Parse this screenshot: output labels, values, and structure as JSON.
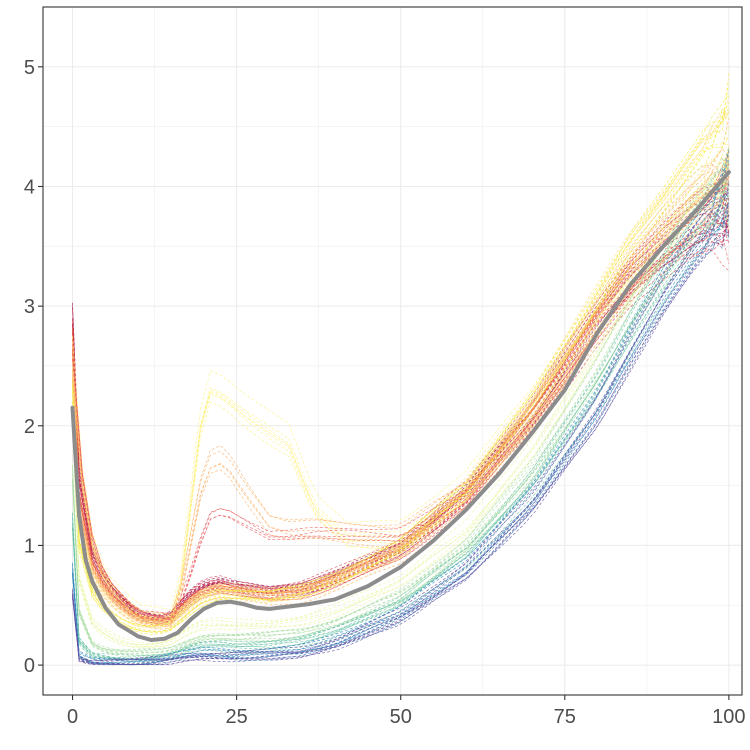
{
  "chart_data": {
    "type": "line",
    "title": "",
    "xlabel": "",
    "ylabel": "",
    "xlim": [
      -4.5,
      102
    ],
    "ylim": [
      -0.25,
      5.5
    ],
    "x_ticks": [
      0,
      25,
      50,
      75,
      100
    ],
    "x_tick_labels": [
      "0",
      "25",
      "50",
      "75",
      "100"
    ],
    "y_ticks": [
      0,
      1,
      2,
      3,
      4,
      5
    ],
    "y_tick_labels": [
      "0",
      "1",
      "2",
      "3",
      "4",
      "5"
    ],
    "x_minor_ticks": [
      12.5,
      37.5,
      62.5,
      87.5
    ],
    "y_minor_ticks": [
      0.5,
      1.5,
      2.5,
      3.5,
      4.5
    ],
    "grid": true,
    "legend": "none",
    "palette": [
      "#9e0142",
      "#d53e4f",
      "#f46d43",
      "#fdae61",
      "#fee08b",
      "#ffffbf",
      "#e6f598",
      "#abdda4",
      "#66c2a5",
      "#3288bd",
      "#5e4fa2"
    ],
    "bundles": [
      {
        "name": "dark-red",
        "color": "#9e0142",
        "count": 9,
        "spread": 0.06,
        "x": [
          0,
          1,
          3,
          5,
          8,
          10,
          13,
          15,
          17,
          19,
          22,
          25,
          30,
          35,
          40,
          50,
          60,
          70,
          80,
          85,
          90,
          95,
          100
        ],
        "y": [
          2.9,
          1.6,
          0.95,
          0.72,
          0.52,
          0.43,
          0.38,
          0.42,
          0.55,
          0.64,
          0.7,
          0.66,
          0.62,
          0.65,
          0.75,
          0.98,
          1.45,
          2.1,
          2.9,
          3.25,
          3.5,
          3.7,
          3.8
        ]
      },
      {
        "name": "red",
        "color": "#d53e4f",
        "count": 9,
        "spread": 0.06,
        "x": [
          0,
          1,
          3,
          5,
          8,
          10,
          13,
          15,
          17,
          19,
          22,
          25,
          30,
          35,
          40,
          50,
          60,
          70,
          80,
          85,
          90,
          95,
          100
        ],
        "y": [
          2.8,
          1.5,
          0.9,
          0.68,
          0.5,
          0.42,
          0.37,
          0.4,
          0.52,
          0.62,
          0.68,
          0.64,
          0.6,
          0.63,
          0.73,
          0.97,
          1.42,
          2.08,
          2.85,
          3.2,
          3.45,
          3.68,
          3.9
        ]
      },
      {
        "name": "orange-red",
        "color": "#f46d43",
        "count": 9,
        "spread": 0.06,
        "x": [
          0,
          1,
          3,
          5,
          8,
          10,
          13,
          15,
          17,
          19,
          22,
          25,
          30,
          35,
          40,
          50,
          60,
          70,
          80,
          85,
          90,
          95,
          100
        ],
        "y": [
          2.7,
          1.4,
          0.85,
          0.64,
          0.47,
          0.4,
          0.36,
          0.39,
          0.5,
          0.6,
          0.66,
          0.63,
          0.59,
          0.62,
          0.72,
          0.96,
          1.42,
          2.1,
          2.9,
          3.28,
          3.55,
          3.8,
          4.0
        ]
      },
      {
        "name": "orange",
        "color": "#fdae61",
        "count": 9,
        "spread": 0.06,
        "x": [
          0,
          1,
          3,
          5,
          8,
          10,
          13,
          15,
          17,
          19,
          22,
          25,
          30,
          35,
          40,
          50,
          60,
          70,
          80,
          85,
          90,
          95,
          100
        ],
        "y": [
          2.6,
          1.3,
          0.8,
          0.6,
          0.45,
          0.38,
          0.35,
          0.38,
          0.48,
          0.58,
          0.64,
          0.62,
          0.58,
          0.61,
          0.71,
          0.96,
          1.43,
          2.12,
          2.95,
          3.35,
          3.65,
          3.95,
          4.15
        ]
      },
      {
        "name": "yellow",
        "color": "#fee08b",
        "count": 9,
        "spread": 0.06,
        "x": [
          0,
          1,
          3,
          5,
          8,
          10,
          13,
          15,
          17,
          19,
          22,
          25,
          30,
          35,
          40,
          50,
          60,
          70,
          80,
          85,
          90,
          95,
          100
        ],
        "y": [
          2.5,
          1.2,
          0.75,
          0.56,
          0.42,
          0.36,
          0.34,
          0.37,
          0.47,
          0.56,
          0.63,
          0.61,
          0.58,
          0.61,
          0.71,
          0.97,
          1.45,
          2.15,
          3.0,
          3.42,
          3.75,
          4.1,
          4.4
        ]
      },
      {
        "name": "bright-yellow",
        "color": "#f5e93d",
        "count": 8,
        "spread": 0.07,
        "x": [
          0,
          1,
          3,
          5,
          8,
          10,
          13,
          15,
          17,
          19,
          22,
          25,
          30,
          35,
          40,
          50,
          60,
          70,
          80,
          85,
          90,
          95,
          100
        ],
        "y": [
          2.3,
          1.0,
          0.6,
          0.45,
          0.34,
          0.3,
          0.28,
          0.31,
          0.4,
          0.5,
          0.58,
          0.58,
          0.56,
          0.6,
          0.7,
          0.97,
          1.45,
          2.15,
          3.0,
          3.45,
          3.8,
          4.2,
          4.6
        ]
      },
      {
        "name": "bump-high",
        "color": "#fff07a",
        "count": 7,
        "spread": 0.12,
        "x": [
          0,
          2,
          5,
          10,
          15,
          17,
          19,
          21,
          23,
          26,
          30,
          33,
          37,
          42,
          50,
          60,
          70,
          80,
          90,
          100
        ],
        "y": [
          2.6,
          1.2,
          0.7,
          0.42,
          0.38,
          0.8,
          1.9,
          2.3,
          2.25,
          2.1,
          1.95,
          1.85,
          1.3,
          1.05,
          1.05,
          1.45,
          2.1,
          2.9,
          3.6,
          4.2
        ]
      },
      {
        "name": "bump-mid",
        "color": "#fdae61",
        "count": 5,
        "spread": 0.1,
        "x": [
          0,
          2,
          5,
          10,
          15,
          17,
          19,
          21,
          23,
          26,
          30,
          33,
          37,
          42,
          50,
          60,
          70,
          80,
          90,
          100
        ],
        "y": [
          2.5,
          1.2,
          0.7,
          0.42,
          0.38,
          0.7,
          1.4,
          1.7,
          1.75,
          1.5,
          1.2,
          1.15,
          1.15,
          1.12,
          1.1,
          1.45,
          2.1,
          2.9,
          3.6,
          4.1
        ]
      },
      {
        "name": "bump-red",
        "color": "#e8585a",
        "count": 4,
        "spread": 0.08,
        "x": [
          0,
          2,
          5,
          10,
          15,
          17,
          19,
          21,
          23,
          26,
          30,
          33,
          37,
          42,
          50,
          60,
          70,
          80,
          90,
          100
        ],
        "y": [
          2.7,
          1.3,
          0.75,
          0.45,
          0.4,
          0.6,
          1.0,
          1.3,
          1.35,
          1.25,
          1.12,
          1.12,
          1.15,
          1.15,
          1.12,
          1.48,
          2.15,
          2.95,
          3.55,
          3.7
        ]
      },
      {
        "name": "light-green",
        "color": "#e6f598",
        "count": 6,
        "spread": 0.05,
        "x": [
          0,
          1,
          3,
          5,
          8,
          10,
          13,
          15,
          17,
          19,
          22,
          25,
          30,
          35,
          40,
          50,
          60,
          70,
          80,
          85,
          90,
          95,
          100
        ],
        "y": [
          2.0,
          0.7,
          0.35,
          0.25,
          0.18,
          0.16,
          0.16,
          0.19,
          0.26,
          0.32,
          0.34,
          0.33,
          0.33,
          0.36,
          0.44,
          0.68,
          1.1,
          1.75,
          2.6,
          3.05,
          3.45,
          3.85,
          4.1
        ]
      },
      {
        "name": "green",
        "color": "#abdda4",
        "count": 9,
        "spread": 0.05,
        "x": [
          0,
          1,
          3,
          5,
          8,
          10,
          13,
          15,
          17,
          19,
          22,
          25,
          30,
          35,
          40,
          50,
          60,
          70,
          80,
          85,
          90,
          95,
          100
        ],
        "y": [
          1.6,
          0.45,
          0.18,
          0.12,
          0.1,
          0.1,
          0.1,
          0.12,
          0.17,
          0.22,
          0.24,
          0.23,
          0.24,
          0.27,
          0.35,
          0.58,
          1.0,
          1.62,
          2.45,
          2.92,
          3.35,
          3.75,
          4.0
        ]
      },
      {
        "name": "teal",
        "color": "#66c2a5",
        "count": 9,
        "spread": 0.05,
        "x": [
          0,
          1,
          3,
          5,
          8,
          10,
          13,
          15,
          17,
          19,
          22,
          25,
          30,
          35,
          40,
          50,
          60,
          70,
          80,
          85,
          90,
          95,
          100
        ],
        "y": [
          1.2,
          0.2,
          0.08,
          0.06,
          0.05,
          0.05,
          0.06,
          0.08,
          0.12,
          0.16,
          0.17,
          0.16,
          0.17,
          0.2,
          0.28,
          0.52,
          0.92,
          1.52,
          2.32,
          2.8,
          3.25,
          3.65,
          3.95
        ]
      },
      {
        "name": "blue",
        "color": "#3288bd",
        "count": 9,
        "spread": 0.05,
        "x": [
          0,
          1,
          3,
          5,
          8,
          10,
          13,
          15,
          17,
          19,
          22,
          25,
          30,
          35,
          40,
          50,
          60,
          70,
          80,
          85,
          90,
          95,
          100
        ],
        "y": [
          0.8,
          0.08,
          0.03,
          0.03,
          0.03,
          0.03,
          0.04,
          0.06,
          0.08,
          0.1,
          0.1,
          0.09,
          0.1,
          0.12,
          0.2,
          0.43,
          0.82,
          1.4,
          2.2,
          2.7,
          3.15,
          3.58,
          3.9
        ]
      },
      {
        "name": "indigo",
        "color": "#5e4fa2",
        "count": 9,
        "spread": 0.05,
        "x": [
          0,
          1,
          3,
          5,
          8,
          10,
          13,
          15,
          17,
          19,
          22,
          25,
          30,
          35,
          40,
          50,
          60,
          70,
          80,
          85,
          90,
          95,
          100
        ],
        "y": [
          0.6,
          0.05,
          0.02,
          0.02,
          0.02,
          0.02,
          0.03,
          0.04,
          0.06,
          0.07,
          0.07,
          0.07,
          0.08,
          0.1,
          0.17,
          0.4,
          0.78,
          1.35,
          2.12,
          2.62,
          3.1,
          3.52,
          3.85
        ]
      }
    ],
    "mean_line": {
      "color": "#8c8c8c",
      "x": [
        0,
        0.5,
        1,
        2,
        3,
        5,
        7,
        10,
        12,
        14,
        16,
        18,
        20,
        22,
        24,
        26,
        28,
        30,
        33,
        36,
        40,
        45,
        50,
        55,
        60,
        65,
        70,
        75,
        80,
        85,
        90,
        95,
        100
      ],
      "y": [
        2.15,
        1.7,
        1.25,
        0.88,
        0.7,
        0.48,
        0.34,
        0.24,
        0.21,
        0.22,
        0.27,
        0.38,
        0.47,
        0.52,
        0.53,
        0.51,
        0.48,
        0.47,
        0.49,
        0.51,
        0.55,
        0.66,
        0.82,
        1.04,
        1.3,
        1.6,
        1.94,
        2.3,
        2.78,
        3.18,
        3.5,
        3.8,
        4.12
      ]
    }
  }
}
